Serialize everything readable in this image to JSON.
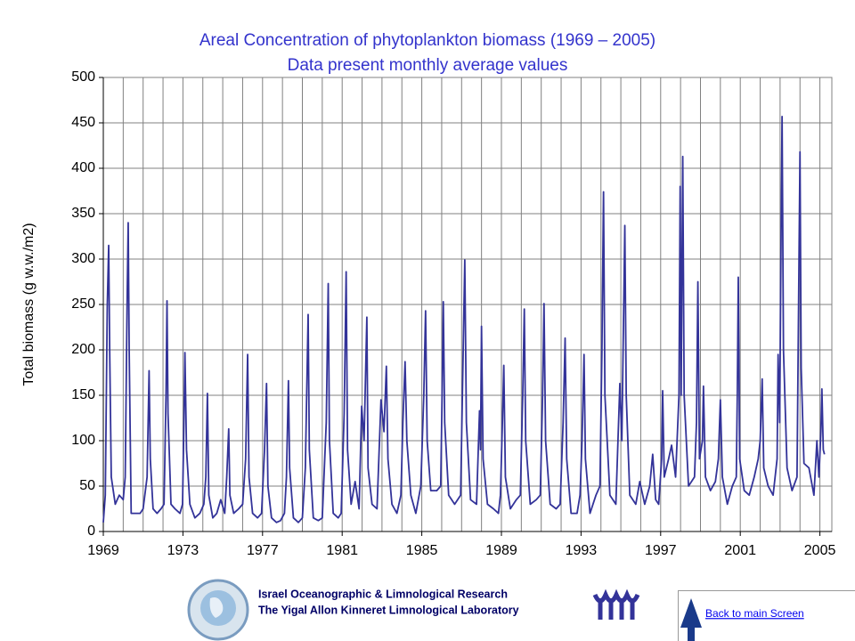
{
  "chart_data": {
    "type": "line",
    "title": "Areal Concentration of phytoplankton biomass (1969 – 2005)",
    "subtitle": "Data present monthly average values",
    "y_label": "Total biomass (g w.w./m2)",
    "color": "#333399",
    "xlim": [
      1969,
      2005.6
    ],
    "xticks": [
      1969,
      1973,
      1977,
      1981,
      1985,
      1989,
      1993,
      1997,
      2001,
      2005
    ],
    "xgrid": [
      1969,
      1970,
      1971,
      1972,
      1973,
      1974,
      1975,
      1976,
      1977,
      1978,
      1979,
      1980,
      1981,
      1982,
      1983,
      1984,
      1985,
      1986,
      1987,
      1988,
      1989,
      1990,
      1991,
      1992,
      1993,
      1994,
      1995,
      1996,
      1997,
      1998,
      1999,
      2000,
      2001,
      2002,
      2003,
      2004,
      2005
    ],
    "ylim": [
      0,
      500
    ],
    "yticks": [
      0,
      50,
      100,
      150,
      200,
      250,
      300,
      350,
      400,
      450,
      500
    ],
    "grid": true,
    "x": [
      1969.0,
      1969.1,
      1969.2,
      1969.27,
      1969.32,
      1969.4,
      1969.6,
      1969.8,
      1970.0,
      1970.1,
      1970.2,
      1970.25,
      1970.3,
      1970.4,
      1970.6,
      1970.85,
      1971.0,
      1971.2,
      1971.3,
      1971.36,
      1971.5,
      1971.7,
      1971.9,
      1972.05,
      1972.15,
      1972.2,
      1972.25,
      1972.4,
      1972.6,
      1972.85,
      1972.98,
      1973.05,
      1973.1,
      1973.18,
      1973.35,
      1973.6,
      1973.85,
      1974.05,
      1974.15,
      1974.23,
      1974.3,
      1974.5,
      1974.7,
      1974.9,
      1975.1,
      1975.2,
      1975.3,
      1975.36,
      1975.55,
      1975.8,
      1976.0,
      1976.15,
      1976.25,
      1976.32,
      1976.5,
      1976.75,
      1976.95,
      1977.1,
      1977.2,
      1977.27,
      1977.45,
      1977.7,
      1977.9,
      1978.1,
      1978.2,
      1978.3,
      1978.36,
      1978.55,
      1978.8,
      1979.0,
      1979.15,
      1979.29,
      1979.35,
      1979.55,
      1979.8,
      1980.0,
      1980.2,
      1980.3,
      1980.36,
      1980.55,
      1980.8,
      1980.95,
      1981.1,
      1981.2,
      1981.27,
      1981.45,
      1981.65,
      1981.85,
      1981.98,
      1982.1,
      1982.24,
      1982.3,
      1982.5,
      1982.75,
      1982.95,
      1983.1,
      1983.22,
      1983.3,
      1983.5,
      1983.75,
      1983.95,
      1984.05,
      1984.16,
      1984.25,
      1984.45,
      1984.7,
      1984.95,
      1985.1,
      1985.19,
      1985.27,
      1985.45,
      1985.75,
      1985.95,
      1986.02,
      1986.08,
      1986.15,
      1986.35,
      1986.65,
      1986.95,
      1987.08,
      1987.16,
      1987.24,
      1987.45,
      1987.75,
      1987.9,
      1987.95,
      1988.0,
      1988.08,
      1988.3,
      1988.6,
      1988.85,
      1988.95,
      1989.05,
      1989.12,
      1989.2,
      1989.45,
      1989.75,
      1989.95,
      1990.07,
      1990.15,
      1990.22,
      1990.45,
      1990.75,
      1990.95,
      1991.07,
      1991.14,
      1991.22,
      1991.45,
      1991.75,
      1991.95,
      1992.1,
      1992.2,
      1992.28,
      1992.5,
      1992.8,
      1992.95,
      1993.05,
      1993.15,
      1993.22,
      1993.45,
      1993.75,
      1993.95,
      1994.05,
      1994.13,
      1994.2,
      1994.45,
      1994.75,
      1994.95,
      1995.05,
      1995.2,
      1995.27,
      1995.45,
      1995.75,
      1995.95,
      1996.2,
      1996.45,
      1996.6,
      1996.75,
      1996.9,
      1997.05,
      1997.1,
      1997.18,
      1997.4,
      1997.55,
      1997.75,
      1997.92,
      1997.98,
      1998.03,
      1998.11,
      1998.18,
      1998.4,
      1998.7,
      1998.8,
      1998.87,
      1998.95,
      1999.1,
      1999.15,
      1999.25,
      1999.5,
      1999.75,
      1999.9,
      2000.0,
      2000.1,
      2000.35,
      2000.6,
      2000.8,
      2000.85,
      2000.9,
      2000.97,
      2001.2,
      2001.45,
      2001.7,
      2001.9,
      2002.0,
      2002.1,
      2002.18,
      2002.4,
      2002.65,
      2002.85,
      2002.9,
      2002.98,
      2003.05,
      2003.1,
      2003.17,
      2003.35,
      2003.6,
      2003.85,
      2003.95,
      2004.0,
      2004.06,
      2004.2,
      2004.45,
      2004.7,
      2004.85,
      2004.95,
      2005.05,
      2005.1,
      2005.17,
      2005.23
    ],
    "values": [
      10,
      40,
      250,
      315,
      200,
      60,
      30,
      40,
      35,
      60,
      260,
      340,
      200,
      20,
      20,
      20,
      25,
      60,
      177,
      80,
      25,
      20,
      25,
      30,
      150,
      254,
      130,
      30,
      25,
      20,
      30,
      120,
      197,
      90,
      30,
      15,
      20,
      30,
      60,
      152,
      40,
      15,
      20,
      35,
      20,
      60,
      113,
      40,
      20,
      25,
      30,
      80,
      195,
      60,
      20,
      15,
      20,
      90,
      163,
      50,
      15,
      10,
      12,
      20,
      60,
      166,
      70,
      15,
      10,
      15,
      70,
      239,
      90,
      15,
      12,
      15,
      120,
      273,
      100,
      20,
      15,
      20,
      130,
      286,
      90,
      30,
      55,
      25,
      138,
      100,
      236,
      70,
      30,
      25,
      145,
      110,
      182,
      80,
      30,
      20,
      40,
      120,
      187,
      100,
      40,
      20,
      50,
      150,
      243,
      100,
      45,
      45,
      50,
      150,
      253,
      120,
      40,
      30,
      40,
      200,
      299,
      120,
      35,
      30,
      133,
      90,
      226,
      80,
      30,
      25,
      20,
      40,
      120,
      183,
      60,
      25,
      35,
      40,
      150,
      245,
      100,
      30,
      35,
      40,
      150,
      251,
      100,
      30,
      25,
      30,
      120,
      213,
      80,
      20,
      20,
      40,
      100,
      195,
      80,
      20,
      40,
      50,
      200,
      374,
      150,
      40,
      30,
      163,
      100,
      337,
      150,
      40,
      30,
      55,
      30,
      50,
      85,
      35,
      30,
      80,
      155,
      60,
      80,
      95,
      60,
      150,
      380,
      150,
      413,
      150,
      50,
      60,
      120,
      275,
      80,
      100,
      160,
      60,
      45,
      55,
      80,
      145,
      60,
      30,
      50,
      60,
      150,
      280,
      80,
      45,
      40,
      60,
      80,
      100,
      168,
      70,
      50,
      40,
      80,
      195,
      120,
      330,
      457,
      200,
      70,
      45,
      60,
      300,
      418,
      180,
      75,
      70,
      40,
      100,
      60,
      110,
      157,
      90,
      85
    ]
  },
  "footer": {
    "org_line1": "Israel Oceanographic & Limnological Research",
    "org_line2": "The Yigal Allon Kinneret Limnological Laboratory",
    "link": "Back to main Screen"
  }
}
